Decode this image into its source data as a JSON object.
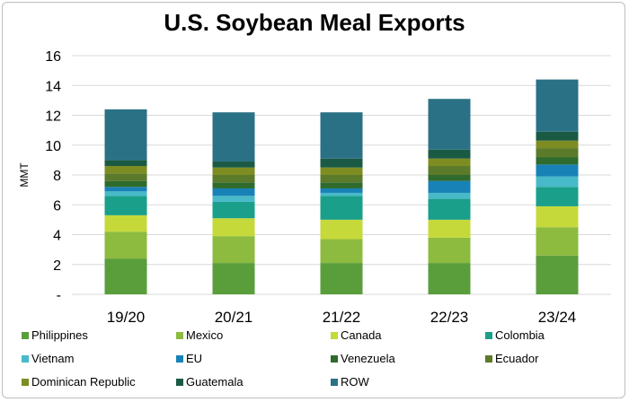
{
  "chart_data": {
    "type": "bar",
    "stacked": true,
    "title": "U.S. Soybean Meal Exports",
    "ylabel": "MMT",
    "xlabel": "",
    "ylim": [
      0,
      16
    ],
    "yticks": [
      0,
      2,
      4,
      6,
      8,
      10,
      12,
      14,
      16
    ],
    "ytick_labels": [
      "-",
      "2",
      "4",
      "6",
      "8",
      "10",
      "12",
      "14",
      "16"
    ],
    "grid": true,
    "legend_position": "bottom",
    "categories": [
      "19/20",
      "20/21",
      "21/22",
      "22/23",
      "23/24"
    ],
    "series": [
      {
        "name": "Philippines",
        "color": "#5a9e3c",
        "values": [
          2.4,
          2.1,
          2.1,
          2.1,
          2.6
        ]
      },
      {
        "name": "Mexico",
        "color": "#8dbb3f",
        "values": [
          1.8,
          1.8,
          1.6,
          1.7,
          1.9
        ]
      },
      {
        "name": "Canada",
        "color": "#c6d93a",
        "values": [
          1.1,
          1.2,
          1.3,
          1.2,
          1.4
        ]
      },
      {
        "name": "Colombia",
        "color": "#1a9f8a",
        "values": [
          1.3,
          1.1,
          1.6,
          1.4,
          1.3
        ]
      },
      {
        "name": "Vietnam",
        "color": "#47b9c8",
        "values": [
          0.3,
          0.4,
          0.2,
          0.4,
          0.7
        ]
      },
      {
        "name": "EU",
        "color": "#1882b7",
        "values": [
          0.3,
          0.5,
          0.3,
          0.8,
          0.8
        ]
      },
      {
        "name": "Venezuela",
        "color": "#2e6b2d",
        "values": [
          0.4,
          0.4,
          0.4,
          0.4,
          0.5
        ]
      },
      {
        "name": "Ecuador",
        "color": "#5b7a2a",
        "values": [
          0.5,
          0.5,
          0.5,
          0.6,
          0.6
        ]
      },
      {
        "name": "Dominican Republic",
        "color": "#7e8d22",
        "values": [
          0.5,
          0.5,
          0.5,
          0.5,
          0.5
        ]
      },
      {
        "name": "Guatemala",
        "color": "#1a5a44",
        "values": [
          0.4,
          0.4,
          0.6,
          0.6,
          0.6
        ]
      },
      {
        "name": "ROW",
        "color": "#2b7186",
        "values": [
          3.4,
          3.3,
          3.1,
          3.4,
          3.5
        ]
      }
    ]
  }
}
